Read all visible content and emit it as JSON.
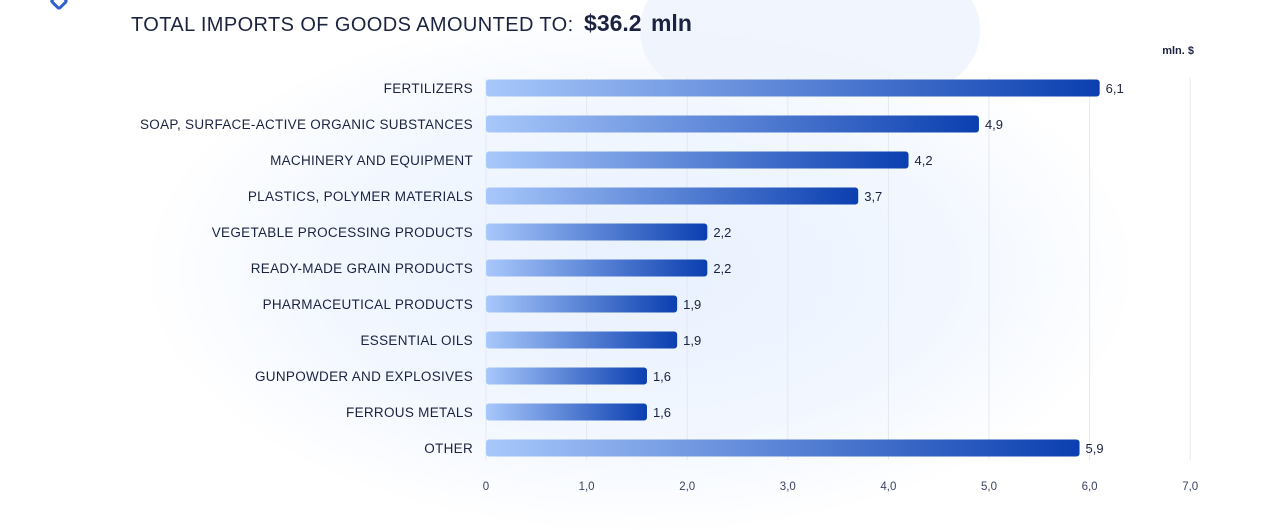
{
  "header": {
    "title_label": "TOTAL IMPORTS OF GOODS AMOUNTED TO:",
    "title_value": "$36.2  mln",
    "unit_label": "mln. $"
  },
  "colors": {
    "bar_start": "#a8c8fb",
    "bar_end": "#0b3fb0",
    "grid": "#e3e8f0",
    "text": "#1c2340"
  },
  "chart_data": {
    "type": "bar",
    "orientation": "horizontal",
    "title": "TOTAL IMPORTS OF GOODS AMOUNTED TO: $36.2  mln",
    "unit": "mln. $",
    "categories": [
      "FERTILIZERS",
      "SOAP, SURFACE-ACTIVE ORGANIC SUBSTANCES",
      "MACHINERY AND EQUIPMENT",
      "PLASTICS, POLYMER MATERIALS",
      "VEGETABLE PROCESSING PRODUCTS",
      "READY-MADE GRAIN PRODUCTS",
      "PHARMACEUTICAL PRODUCTS",
      "ESSENTIAL OILS",
      "GUNPOWDER AND EXPLOSIVES",
      "FERROUS METALS",
      "OTHER"
    ],
    "values": [
      6.1,
      4.9,
      4.2,
      3.7,
      2.2,
      2.2,
      1.9,
      1.9,
      1.6,
      1.6,
      5.9
    ],
    "value_labels": [
      "6,1",
      "4,9",
      "4,2",
      "3,7",
      "2,2",
      "2,2",
      "1,9",
      "1,9",
      "1,6",
      "1,6",
      "5,9"
    ],
    "xticks": [
      0,
      1,
      2,
      3,
      4,
      5,
      6,
      7
    ],
    "xtick_labels": [
      "0",
      "1,0",
      "2,0",
      "3,0",
      "4,0",
      "5,0",
      "6,0",
      "7,0"
    ],
    "xlim": [
      0,
      7
    ],
    "grid": true,
    "legend": "none"
  }
}
